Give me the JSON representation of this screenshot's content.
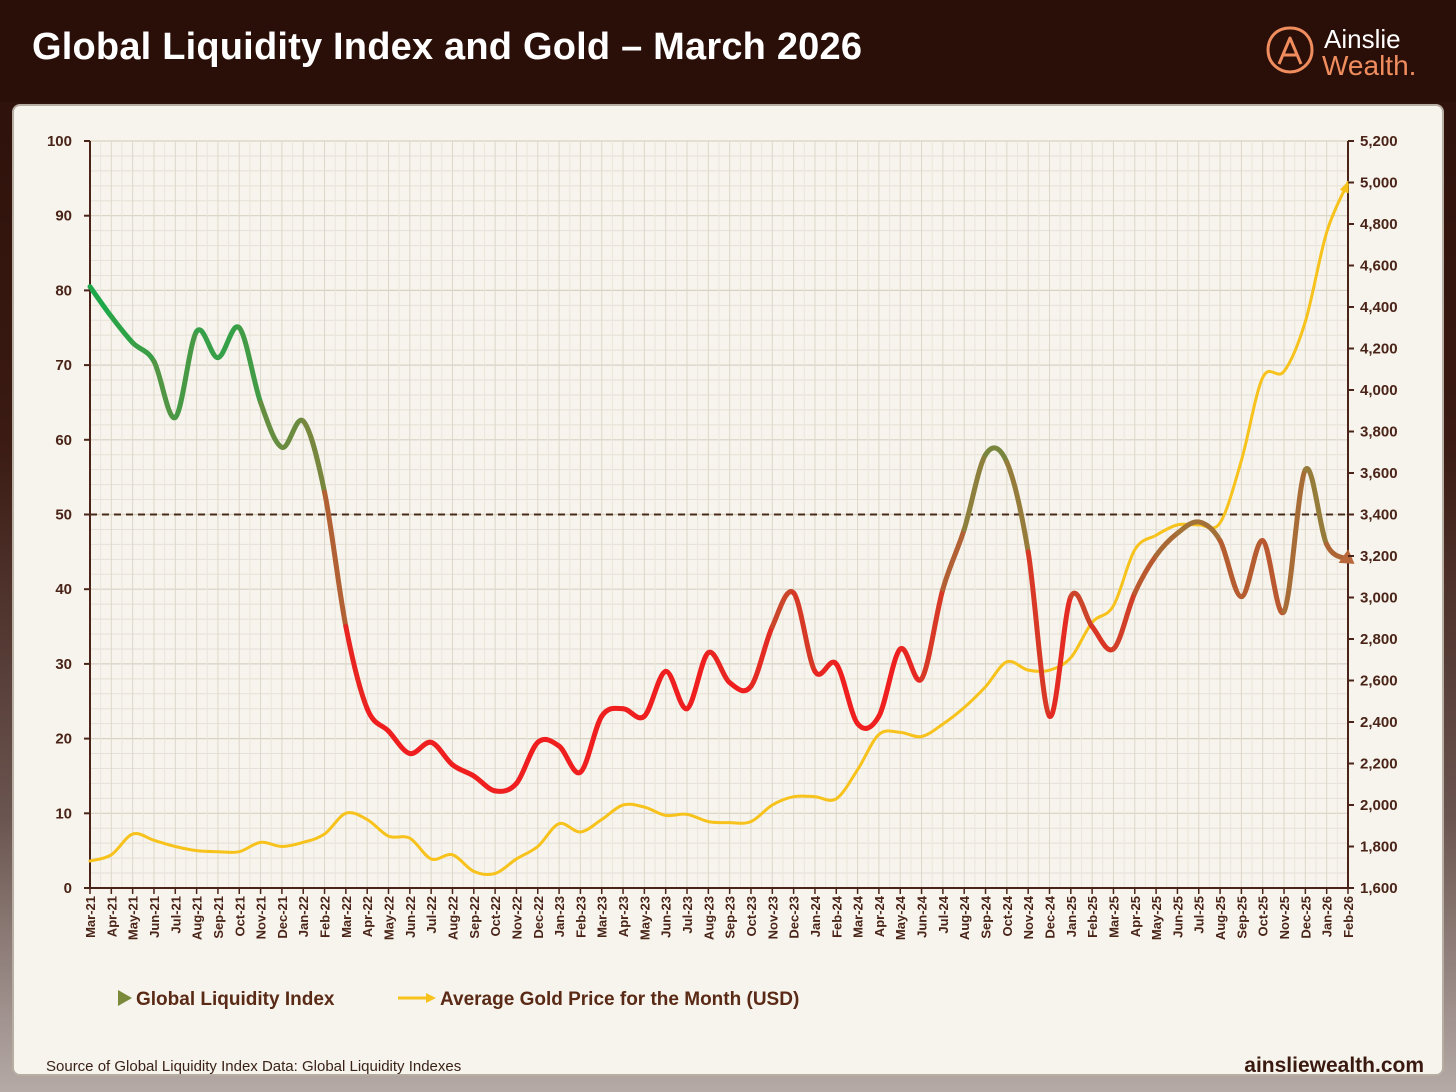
{
  "header": {
    "title": "Global Liquidity Index and Gold – March 2026",
    "logo_line1": "Ainslie",
    "logo_line2": "Wealth."
  },
  "footer": {
    "source": "Source of Global Liquidity Index Data: Global Liquidity Indexes",
    "website": "ainsliewealth.com"
  },
  "colors": {
    "gold_line": "#f7c21b",
    "liquidity_high": "#1fa84a",
    "liquidity_low": "#ef1f1f",
    "liquidity_mid": "#9a7a3a",
    "reference_line": "#4a2a1a"
  },
  "chart_data": {
    "type": "line",
    "title": "Global Liquidity Index and Gold – March 2026",
    "x": [
      "Mar-21",
      "Apr-21",
      "May-21",
      "Jun-21",
      "Jul-21",
      "Aug-21",
      "Sep-21",
      "Oct-21",
      "Nov-21",
      "Dec-21",
      "Jan-22",
      "Feb-22",
      "Mar-22",
      "Apr-22",
      "May-22",
      "Jun-22",
      "Jul-22",
      "Aug-22",
      "Sep-22",
      "Oct-22",
      "Nov-22",
      "Dec-22",
      "Jan-23",
      "Feb-23",
      "Mar-23",
      "Apr-23",
      "May-23",
      "Jun-23",
      "Jul-23",
      "Aug-23",
      "Sep-23",
      "Oct-23",
      "Nov-23",
      "Dec-23",
      "Jan-24",
      "Feb-24",
      "Mar-24",
      "Apr-24",
      "May-24",
      "Jun-24",
      "Jul-24",
      "Aug-24",
      "Sep-24",
      "Oct-24",
      "Nov-24",
      "Dec-24",
      "Jan-25",
      "Feb-25",
      "Mar-25",
      "Apr-25",
      "May-25",
      "Jun-25",
      "Jul-25",
      "Aug-25",
      "Sep-25",
      "Oct-25",
      "Nov-25",
      "Dec-25",
      "Jan-26",
      "Feb-26"
    ],
    "left_axis": {
      "ylim": [
        0,
        100
      ],
      "ticks": [
        "0",
        "10",
        "20",
        "30",
        "40",
        "50",
        "60",
        "70",
        "80",
        "90",
        "100"
      ]
    },
    "right_axis": {
      "ylim": [
        1600,
        5200
      ],
      "ticks": [
        "1,600",
        "1,800",
        "2,000",
        "2,200",
        "2,400",
        "2,600",
        "2,800",
        "3,000",
        "3,200",
        "3,400",
        "3,600",
        "3,800",
        "4,000",
        "4,200",
        "4,400",
        "4,600",
        "4,800",
        "5,000",
        "5,200"
      ]
    },
    "reference_line": {
      "axis": "left",
      "value": 50
    },
    "grid": true,
    "legend_position": "bottom-left",
    "series": [
      {
        "name": "Global Liquidity Index",
        "axis": "left",
        "values": [
          80.5,
          76.5,
          73,
          70.5,
          63,
          74.5,
          71,
          75,
          65,
          59,
          62.5,
          53,
          35,
          24,
          21,
          18,
          19.5,
          16.5,
          15,
          13,
          14,
          19.5,
          19,
          15.5,
          23,
          24,
          23,
          29,
          24,
          31.5,
          27.5,
          27,
          35,
          39.5,
          29,
          30,
          22,
          23,
          32,
          28,
          40,
          48,
          58,
          57,
          45,
          23,
          39,
          35,
          32,
          39.5,
          44.5,
          47.5,
          49,
          46.5,
          39,
          46.5,
          37,
          56,
          46,
          44
        ]
      },
      {
        "name": "Average Gold Price for the Month (USD)",
        "axis": "right",
        "values": [
          1730,
          1760,
          1860,
          1830,
          1800,
          1780,
          1775,
          1775,
          1820,
          1800,
          1820,
          1860,
          1960,
          1930,
          1850,
          1840,
          1740,
          1760,
          1680,
          1670,
          1740,
          1800,
          1910,
          1870,
          1930,
          2000,
          1990,
          1950,
          1955,
          1920,
          1915,
          1920,
          2000,
          2040,
          2040,
          2030,
          2170,
          2340,
          2350,
          2330,
          2390,
          2470,
          2570,
          2690,
          2650,
          2650,
          2710,
          2880,
          2960,
          3230,
          3300,
          3350,
          3350,
          3360,
          3660,
          4060,
          4090,
          4330,
          4760,
          5000
        ]
      }
    ]
  }
}
